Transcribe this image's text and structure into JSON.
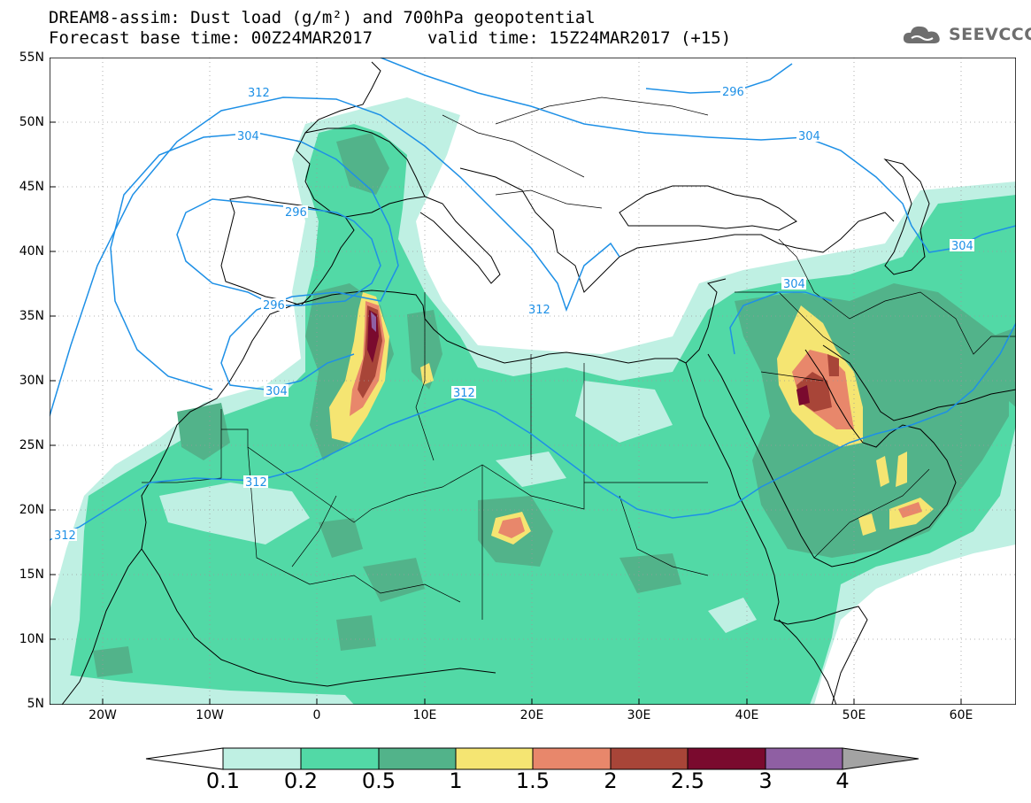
{
  "title": {
    "line1": "DREAM8-assim: Dust load (g/m²) and 700hPa geopotential",
    "line2_base": "Forecast base time: 00Z24MAR2017",
    "line2_valid": "valid time: 15Z24MAR2017 (+15)"
  },
  "logo": {
    "text": "SEEVCCC",
    "icon": "cloud-icon"
  },
  "axes": {
    "lat_labels": [
      "55N",
      "50N",
      "45N",
      "40N",
      "35N",
      "30N",
      "25N",
      "20N",
      "15N",
      "10N",
      "5N"
    ],
    "lon_labels": [
      "20W",
      "10W",
      "0",
      "10E",
      "20E",
      "30E",
      "40E",
      "50E",
      "60E"
    ],
    "lat_range": [
      5,
      55
    ],
    "lon_range": [
      -25,
      65
    ]
  },
  "contour_labels": [
    "312",
    "304",
    "296",
    "296",
    "304",
    "312",
    "312",
    "312",
    "296",
    "304",
    "304",
    "304",
    "312"
  ],
  "colorbar": {
    "labels": [
      "0.1",
      "0.2",
      "0.5",
      "1",
      "1.5",
      "2",
      "2.5",
      "3",
      "4"
    ],
    "colors": [
      "#ffffff",
      "#bff0e3",
      "#52d9a6",
      "#52b38a",
      "#f5e572",
      "#e8876b",
      "#a84538",
      "#7a0a2e",
      "#8f5fa3",
      "#a3a3a3"
    ]
  },
  "colors": {
    "contour": "#1e90e6",
    "coast": "#000000",
    "dust_light": "#bff0e3",
    "dust_mid": "#52d9a6",
    "dust_dark": "#52b38a",
    "dust_yellow": "#f5e572",
    "dust_orange": "#e8876b",
    "dust_brown": "#a84538",
    "dust_maroon": "#7a0a2e",
    "dust_purple": "#8f5fa3"
  }
}
